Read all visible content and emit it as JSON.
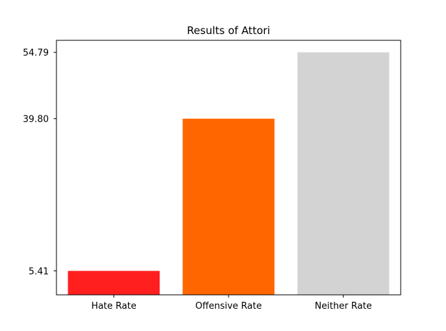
{
  "chart_data": {
    "type": "bar",
    "title": "Results of Attori",
    "xlabel": "",
    "ylabel": "",
    "categories": [
      "Hate Rate",
      "Offensive Rate",
      "Neither Rate"
    ],
    "values": [
      5.41,
      39.8,
      54.79
    ],
    "colors": [
      "#ff1f1f",
      "#ff6600",
      "#d3d3d3"
    ],
    "ylim": [
      0,
      57.5
    ],
    "yticks": [
      5.41,
      39.8,
      54.79
    ],
    "ytick_labels": [
      "5.41",
      "39.80",
      "54.79"
    ],
    "grid": false,
    "legend": false
  }
}
